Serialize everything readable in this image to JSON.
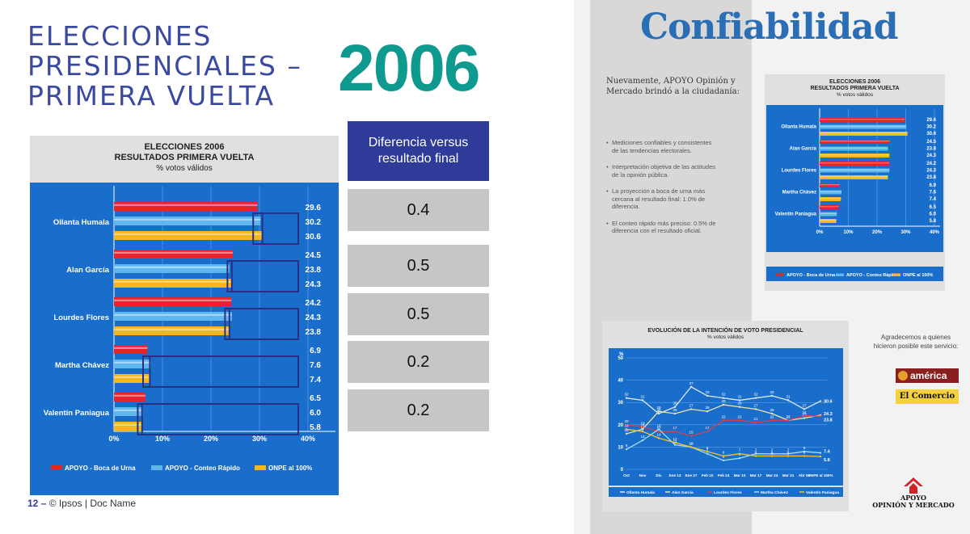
{
  "slide": {
    "title_lines": [
      "ELECCIONES",
      "PRESIDENCIALES –",
      "PRIMERA VUELTA"
    ],
    "year": "2006",
    "footer_page": "12 –",
    "footer_text": "© Ipsos | Doc Name"
  },
  "difference_table": {
    "header": "Diferencia versus resultado final",
    "values": [
      "0.4",
      "0.5",
      "0.5",
      "0.2",
      "0.2"
    ]
  },
  "right_panel": {
    "title": "Confiabilidad",
    "intro": "Nuevamente, APOYO Opinión y Mercado brindó a la ciudadanía:",
    "bullets": [
      "Mediciones confiables y consistentes de las tendencias electorales.",
      "Interpretación objetiva de las actitudes de la opinión pública.",
      "La proyección a boca de urna más cercana al resultado final: 1.0% de diferencia.",
      "El conteo rápido más preciso: 0.5% de diferencia con el resultado oficial."
    ],
    "thanks": "Agradecemos a quienes hicieron posible este servicio:",
    "logo_america": "américa",
    "logo_comercio": "El Comercio",
    "logo_apoyo_line1": "APOYO",
    "logo_apoyo_line2": "OPINIÓN Y MERCADO"
  },
  "colors": {
    "chart_bg": "#1a6ecb",
    "boca_de_urna": "#e8232f",
    "conteo_rapido": "#5fb7ee",
    "onpe": "#f5b71d",
    "highlight_box": "#2a2f85",
    "title_blue": "#3b4aa0",
    "year_teal": "#0f9a90"
  },
  "chart_data": [
    {
      "type": "bar",
      "orientation": "horizontal",
      "title": "ELECCIONES 2006",
      "subtitle": "RESULTADOS PRIMERA VUELTA",
      "unit": "% votos válidos",
      "categories": [
        "Ollanta Humala",
        "Alan García",
        "Lourdes Flores",
        "Martha Chávez",
        "Valentín Paniagua"
      ],
      "series": [
        {
          "name": "APOYO - Boca de Urna",
          "values": [
            29.6,
            24.5,
            24.2,
            6.9,
            6.5
          ]
        },
        {
          "name": "APOYO - Conteo Rápido",
          "values": [
            30.2,
            23.8,
            24.3,
            7.6,
            6.0
          ]
        },
        {
          "name": "ONPE al 100%",
          "values": [
            30.6,
            24.3,
            23.8,
            7.4,
            5.8
          ]
        }
      ],
      "xticks": [
        "0%",
        "10%",
        "20%",
        "30%",
        "40%"
      ],
      "xlim": [
        0,
        40
      ],
      "legend": "bottom"
    },
    {
      "type": "line",
      "title": "EVOLUCIÓN DE LA INTENCIÓN DE VOTO PRESIDENCIAL",
      "subtitle": "% votos válidos",
      "ylabel": "%",
      "x": [
        "Oct",
        "Nov",
        "Dic",
        "Ene 13",
        "Ene 27",
        "Feb 10",
        "Feb 24",
        "Mar 10",
        "Mar 17",
        "Mar 24",
        "Mar 31",
        "Abr 06",
        "ONPE al 100%"
      ],
      "yticks": [
        0,
        10,
        20,
        30,
        40,
        50
      ],
      "ylim": [
        0,
        50
      ],
      "series": [
        {
          "name": "Ollanta Humala",
          "values": [
            32,
            31,
            25,
            28,
            37,
            33,
            32,
            31,
            32,
            33,
            31,
            27,
            30.6
          ]
        },
        {
          "name": "Alan García",
          "values": [
            16,
            18,
            26,
            25,
            27,
            26,
            29,
            28,
            27,
            25,
            22,
            23,
            24.3
          ]
        },
        {
          "name": "Lourdes Flores",
          "values": [
            20,
            19,
            17,
            17,
            15,
            17,
            22,
            22,
            21,
            22,
            22,
            24,
            23.8
          ]
        },
        {
          "name": "Martha Chávez",
          "values": [
            9,
            13,
            18,
            11,
            10,
            7,
            4,
            5,
            7,
            7,
            7,
            8,
            7.4
          ]
        },
        {
          "name": "Valentín Paniagua",
          "values": [
            18,
            17,
            14,
            12,
            10,
            8,
            6,
            7,
            6,
            6,
            6,
            6,
            5.8
          ]
        }
      ],
      "end_labels": [
        "30.6",
        "24.3",
        "23.8",
        "7.4",
        "5.8"
      ],
      "legend": "bottom"
    }
  ]
}
